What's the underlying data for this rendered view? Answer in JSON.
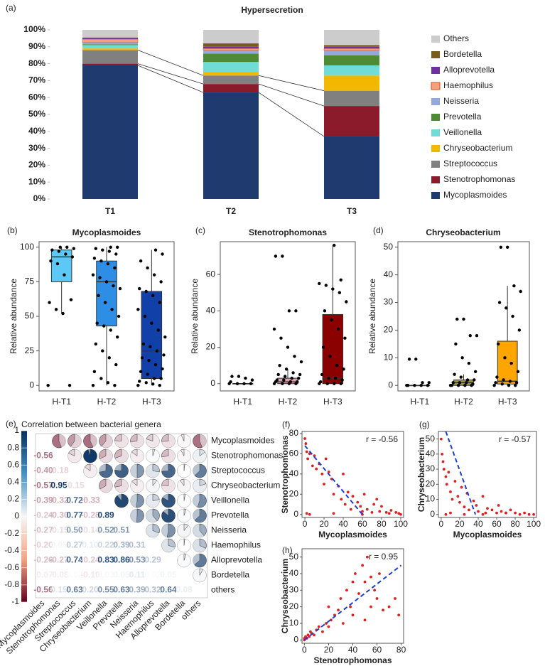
{
  "chart_data": [
    {
      "type": "stacked",
      "panel": "(a)",
      "title": "Hypersecretion",
      "categories": [
        "T1",
        "T2",
        "T3"
      ],
      "ylim": [
        0,
        100
      ],
      "yticks": [
        {
          "value": 0,
          "label": "0%"
        },
        {
          "value": 10,
          "label": "10%"
        },
        {
          "value": 20,
          "label": "20%"
        },
        {
          "value": 30,
          "label": "30%"
        },
        {
          "value": 40,
          "label": "40%"
        },
        {
          "value": 50,
          "label": "50%"
        },
        {
          "value": 60,
          "label": "60%"
        },
        {
          "value": 70,
          "label": "70%"
        },
        {
          "value": 80,
          "label": "80%"
        },
        {
          "value": 90,
          "label": "90%"
        },
        {
          "value": 100,
          "label": "100%"
        }
      ],
      "series": [
        {
          "name": "Mycoplasmoides",
          "color": "#1f3a6e",
          "values": [
            79,
            63,
            37
          ]
        },
        {
          "name": "Stenotrophomonas",
          "color": "#8b1a2a",
          "values": [
            1,
            5,
            18
          ]
        },
        {
          "name": "Streptococcus",
          "color": "#808080",
          "values": [
            8,
            5,
            9
          ]
        },
        {
          "name": "Chryseobacterium",
          "color": "#f2b800",
          "values": [
            1,
            2,
            9
          ]
        },
        {
          "name": "Veillonella",
          "color": "#6fdcd8",
          "values": [
            2,
            6,
            6
          ]
        },
        {
          "name": "Prevotella",
          "color": "#4e8b34",
          "values": [
            0.5,
            5,
            6
          ]
        },
        {
          "name": "Neisseria",
          "color": "#94a8dc",
          "values": [
            1,
            2,
            3
          ]
        },
        {
          "name": "Haemophilus",
          "color": "#f4a07a",
          "values": [
            2,
            1,
            1
          ]
        },
        {
          "name": "Alloprevotella",
          "color": "#7030a0",
          "values": [
            0.5,
            1,
            1
          ]
        },
        {
          "name": "Bordetella",
          "color": "#7a5c1a",
          "values": [
            0.5,
            2,
            1
          ]
        },
        {
          "name": "Others",
          "color": "#cccccc",
          "values": [
            4.5,
            8,
            9
          ]
        }
      ]
    },
    {
      "type": "box",
      "panel": "(b)",
      "title": "Mycoplasmoides",
      "ylabel": "Relative abundance",
      "categories": [
        "H-T1",
        "H-T2",
        "H-T3"
      ],
      "ylim": [
        -4,
        104
      ],
      "yticks": [
        0,
        25,
        50,
        75,
        100
      ],
      "boxes": [
        {
          "color": "#5bc8f5",
          "min": 52,
          "q1": 75,
          "median": 93,
          "q3": 98,
          "max": 100,
          "points": [
            0,
            0,
            52,
            55,
            60,
            62,
            80,
            88,
            90,
            93,
            95,
            97,
            98,
            99,
            100,
            100
          ]
        },
        {
          "color": "#2e8ee6",
          "min": 0,
          "q1": 43,
          "median": 75,
          "q3": 90,
          "max": 100,
          "points": [
            0,
            0,
            2,
            5,
            10,
            15,
            20,
            25,
            30,
            35,
            40,
            43,
            45,
            50,
            55,
            60,
            65,
            70,
            72,
            75,
            78,
            80,
            85,
            88,
            90,
            92,
            95,
            97,
            98,
            99,
            100,
            100
          ]
        },
        {
          "color": "#1040a8",
          "min": 0,
          "q1": 5,
          "median": 25,
          "q3": 68,
          "max": 98,
          "points": [
            0,
            0,
            1,
            2,
            3,
            5,
            5,
            8,
            10,
            12,
            15,
            18,
            20,
            22,
            25,
            28,
            30,
            35,
            40,
            45,
            50,
            55,
            60,
            65,
            68,
            70,
            75,
            80,
            85,
            90,
            95,
            98
          ]
        }
      ]
    },
    {
      "type": "box",
      "panel": "(c)",
      "title": "Stenotrophomonas",
      "ylabel": "Relative abundance",
      "categories": [
        "H-T1",
        "H-T2",
        "H-T3"
      ],
      "ylim": [
        -4,
        78
      ],
      "yticks": [
        0,
        20,
        40,
        60
      ],
      "boxes": [
        {
          "color": "#f5c6d0",
          "min": 0,
          "q1": 0,
          "median": 0,
          "q3": 0,
          "max": 0,
          "points": [
            0,
            0,
            0,
            0,
            1,
            2,
            3,
            4,
            4
          ]
        },
        {
          "color": "#d8a0b0",
          "min": 0,
          "q1": 0,
          "median": 1,
          "q3": 3,
          "max": 8,
          "points": [
            0,
            0,
            0,
            0,
            1,
            1,
            1,
            2,
            2,
            3,
            3,
            4,
            5,
            5,
            6,
            8,
            10,
            12,
            15,
            20,
            25,
            30,
            40,
            40,
            70,
            70
          ]
        },
        {
          "color": "#8b0000",
          "min": 0,
          "q1": 0,
          "median": 3,
          "q3": 38,
          "max": 76,
          "points": [
            0,
            0,
            0,
            0,
            1,
            2,
            3,
            3,
            5,
            8,
            10,
            15,
            20,
            25,
            30,
            35,
            40,
            45,
            50,
            52,
            54,
            55,
            57,
            76
          ]
        }
      ]
    },
    {
      "type": "box",
      "panel": "(d)",
      "title": "Chryseobacterium",
      "ylabel": "Relative abundance",
      "categories": [
        "H-T1",
        "H-T2",
        "H-T3"
      ],
      "ylim": [
        -2,
        52
      ],
      "yticks": [
        0,
        10,
        20,
        30,
        40,
        50
      ],
      "boxes": [
        {
          "color": "#f0e8a0",
          "min": 0,
          "q1": 0,
          "median": 0,
          "q3": 0,
          "max": 0,
          "points": [
            0,
            0,
            0,
            0,
            0,
            1,
            1,
            9.5,
            9.5
          ]
        },
        {
          "color": "#9a9a3a",
          "min": 0,
          "q1": 0,
          "median": 1,
          "q3": 2,
          "max": 4,
          "points": [
            0,
            0,
            0,
            0,
            0,
            0.5,
            1,
            1,
            1,
            2,
            2,
            3,
            4,
            5,
            8,
            10,
            15,
            18,
            18,
            24,
            24
          ]
        },
        {
          "color": "#ffa500",
          "min": 0,
          "q1": 0.5,
          "median": 1.5,
          "q3": 16,
          "max": 36,
          "points": [
            0,
            0,
            0,
            0.5,
            1,
            1,
            1.5,
            2,
            3,
            5,
            8,
            10,
            15,
            20,
            25,
            28,
            30,
            34,
            36,
            50,
            50
          ]
        }
      ]
    },
    {
      "type": "corr",
      "panel": "(e)",
      "title": "Correlation between bacterial genera",
      "labels": [
        "Mycoplasmoides",
        "Stenotrophomonas",
        "Streptococcus",
        "Chryseobacterium",
        "Veillonella",
        "Prevotella",
        "Neisseria",
        "Haemophilus",
        "Alloprevotella",
        "Bordetella",
        "others"
      ],
      "clim": [
        -1,
        1
      ],
      "cticks": [
        1,
        0.8,
        0.6,
        0.4,
        0.2,
        0,
        -0.2,
        -0.4,
        -0.6,
        -0.8,
        -1
      ],
      "values": [
        [
          -0.56
        ],
        [
          -0.4,
          -0.18
        ],
        [
          -0.57,
          0.95,
          -0.15
        ],
        [
          -0.39,
          -0.32,
          0.72,
          -0.33
        ],
        [
          -0.24,
          -0.3,
          0.77,
          -0.28,
          0.89
        ],
        [
          -0.27,
          -0.15,
          0.5,
          -0.14,
          0.52,
          0.51
        ],
        [
          -0.2,
          0.05,
          0.27,
          0.1,
          0.22,
          0.39,
          0.31
        ],
        [
          -0.26,
          -0.27,
          0.74,
          -0.24,
          0.83,
          0.86,
          0.53,
          0.29
        ],
        [
          -0.07,
          -0.08,
          0.02,
          -0.1,
          0.03,
          0.05,
          0.11,
          0.02,
          0.05
        ],
        [
          -0.56,
          0.15,
          0.63,
          0.2,
          0.55,
          0.63,
          0.39,
          0.32,
          0.64,
          0.08
        ]
      ],
      "value_labels": [
        [
          "-0.56"
        ],
        [
          "-0.40",
          "-0.18"
        ],
        [
          "-0.57",
          "0.95",
          "-0.15"
        ],
        [
          "-0.39",
          "-0.32",
          "0.72",
          "-0.33"
        ],
        [
          "-0.24",
          "-0.30",
          "0.77",
          "-0.28",
          "0.89"
        ],
        [
          "-0.27",
          "-0.15",
          "0.50",
          "-0.14",
          "0.52",
          "0.51"
        ],
        [
          "-0.20",
          "0.05",
          "0.27",
          "0.10",
          "0.22",
          "0.39",
          "0.31"
        ],
        [
          "-0.26",
          "-0.27",
          "0.74",
          "-0.24",
          "0.83",
          "0.86",
          "0.53",
          "0.29"
        ],
        [
          "-0.07",
          "-0.08",
          "0.02",
          "-0.10",
          "0.03",
          "0.05",
          "0.11",
          "0.02",
          "0.05"
        ],
        [
          "-0.56",
          "0.15",
          "0.63",
          "0.20",
          "0.55",
          "0.63",
          "0.39",
          "0.32",
          "0.64",
          "0.08"
        ]
      ]
    },
    {
      "type": "scatter",
      "panel": "(f)",
      "xlabel": "Mycoplasmoides",
      "ylabel": "Stenotrophomonas",
      "annotation": "r = -0.56",
      "xlim": [
        -3,
        103
      ],
      "xticks": [
        0,
        20,
        40,
        60,
        80,
        100
      ],
      "ylim": [
        -3,
        82
      ],
      "yticks": [
        0,
        20,
        40,
        60,
        80
      ],
      "color": "#e02020",
      "fit": {
        "x": [
          0,
          60
        ],
        "y": [
          68,
          0
        ]
      },
      "x": [
        0,
        1,
        2,
        3,
        5,
        8,
        10,
        12,
        15,
        18,
        20,
        22,
        25,
        28,
        30,
        35,
        38,
        40,
        42,
        45,
        48,
        50,
        55,
        58,
        60,
        62,
        65,
        70,
        72,
        75,
        78,
        80,
        85,
        88,
        90,
        95,
        98,
        100,
        2,
        5,
        30,
        60
      ],
      "y": [
        75,
        70,
        62,
        55,
        60,
        48,
        58,
        45,
        50,
        40,
        30,
        55,
        42,
        35,
        20,
        28,
        15,
        40,
        10,
        22,
        5,
        18,
        12,
        8,
        3,
        20,
        5,
        2,
        10,
        15,
        3,
        8,
        2,
        1,
        4,
        2,
        1,
        0,
        1,
        0,
        1,
        0
      ]
    },
    {
      "type": "scatter",
      "panel": "(g)",
      "xlabel": "Mycoplasmoides",
      "ylabel": "Chryseobacterium",
      "annotation": "r = -0.57",
      "xlim": [
        -3,
        103
      ],
      "xticks": [
        0,
        20,
        40,
        60,
        80,
        100
      ],
      "ylim": [
        -2,
        55
      ],
      "yticks": [
        0,
        10,
        20,
        30,
        40,
        50
      ],
      "color": "#e02020",
      "fit": {
        "x": [
          5,
          37
        ],
        "y": [
          55,
          0
        ]
      },
      "x": [
        0,
        1,
        2,
        3,
        5,
        6,
        8,
        10,
        12,
        15,
        18,
        20,
        22,
        25,
        28,
        30,
        35,
        38,
        40,
        45,
        48,
        50,
        55,
        60,
        62,
        65,
        70,
        75,
        80,
        85,
        90,
        95,
        100,
        5,
        10,
        25,
        45,
        70
      ],
      "y": [
        50,
        40,
        35,
        30,
        25,
        20,
        28,
        15,
        10,
        22,
        12,
        8,
        18,
        5,
        14,
        3,
        9,
        6,
        2,
        12,
        1,
        4,
        3,
        1,
        6,
        2,
        1,
        3,
        1,
        0,
        1,
        0,
        0,
        0,
        1,
        0,
        0,
        1
      ]
    },
    {
      "type": "scatter",
      "panel": "(h)",
      "xlabel": "Stenotrophomonas",
      "ylabel": "Chryseobacterium",
      "annotation": "r = 0.95",
      "xlim": [
        -2,
        82
      ],
      "xticks": [
        0,
        20,
        40,
        60,
        80
      ],
      "ylim": [
        -2,
        55
      ],
      "yticks": [
        0,
        10,
        20,
        30,
        40,
        50
      ],
      "color": "#e02020",
      "fit": {
        "x": [
          0,
          80
        ],
        "y": [
          0,
          45
        ]
      },
      "x": [
        0,
        0,
        1,
        2,
        3,
        4,
        5,
        6,
        8,
        10,
        12,
        15,
        18,
        20,
        22,
        25,
        28,
        30,
        32,
        35,
        38,
        40,
        42,
        45,
        48,
        50,
        52,
        55,
        55,
        58,
        60,
        62,
        65,
        70,
        75,
        78,
        50,
        40,
        20
      ],
      "y": [
        0,
        1,
        2,
        1,
        3,
        2,
        5,
        4,
        3,
        6,
        8,
        5,
        10,
        20,
        12,
        15,
        18,
        25,
        10,
        30,
        20,
        35,
        40,
        28,
        45,
        35,
        50,
        20,
        38,
        30,
        25,
        40,
        18,
        20,
        25,
        15,
        12,
        15,
        8
      ]
    }
  ]
}
